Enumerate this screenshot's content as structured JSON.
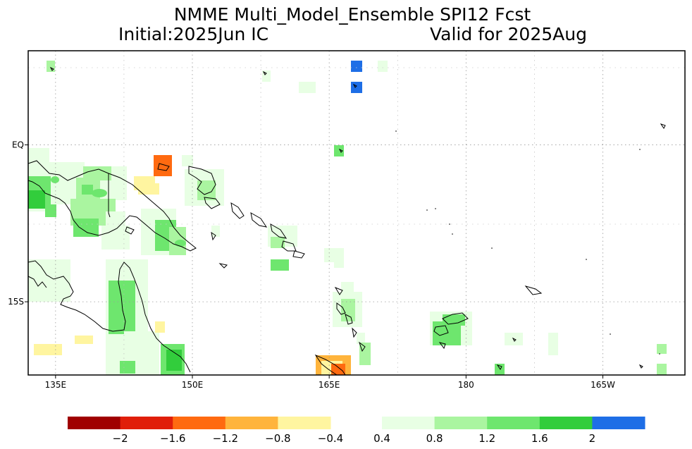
{
  "title": {
    "line1": "NMME Multi_Model_Ensemble  SPI12 Fcst",
    "initial": "Initial:2025Jun IC",
    "valid": "Valid for 2025Aug"
  },
  "map": {
    "lon_ticks": [
      {
        "label": "135E",
        "lon": 135
      },
      {
        "label": "150E",
        "lon": 150
      },
      {
        "label": "165E",
        "lon": 165
      },
      {
        "label": "180",
        "lon": 180
      },
      {
        "label": "165W",
        "lon": 195
      }
    ],
    "lat_ticks": [
      {
        "label": "EQ",
        "lat": 0
      },
      {
        "label": "15S",
        "lat": -15
      }
    ],
    "extent": {
      "lon_min": 132,
      "lon_max": 204,
      "lat_min": -22,
      "lat_max": 9
    }
  },
  "colorbar": {
    "left_colors": [
      "#a00000",
      "#e01e0a",
      "#ff6a10",
      "#ffb43c",
      "#fff5a0"
    ],
    "right_colors": [
      "#e8ffe4",
      "#aaf5a0",
      "#6ee66e",
      "#32cd3c",
      "#1e6ee6"
    ],
    "left_labels": [
      "−2",
      "−1.6",
      "−1.2",
      "−0.8",
      "−0.4"
    ],
    "right_labels": [
      "0.4",
      "0.8",
      "1.2",
      "1.6",
      "2"
    ]
  },
  "fields": {
    "wet_palette": {
      "c1": "#e8ffe4",
      "c2": "#aaf5a0",
      "c3": "#6ee66e",
      "c4": "#32cd3c",
      "c5": "#1e6ee6"
    },
    "dry_palette": {
      "d1": "#fff5a0",
      "d2": "#ffb43c",
      "d3": "#ff6a10"
    }
  }
}
